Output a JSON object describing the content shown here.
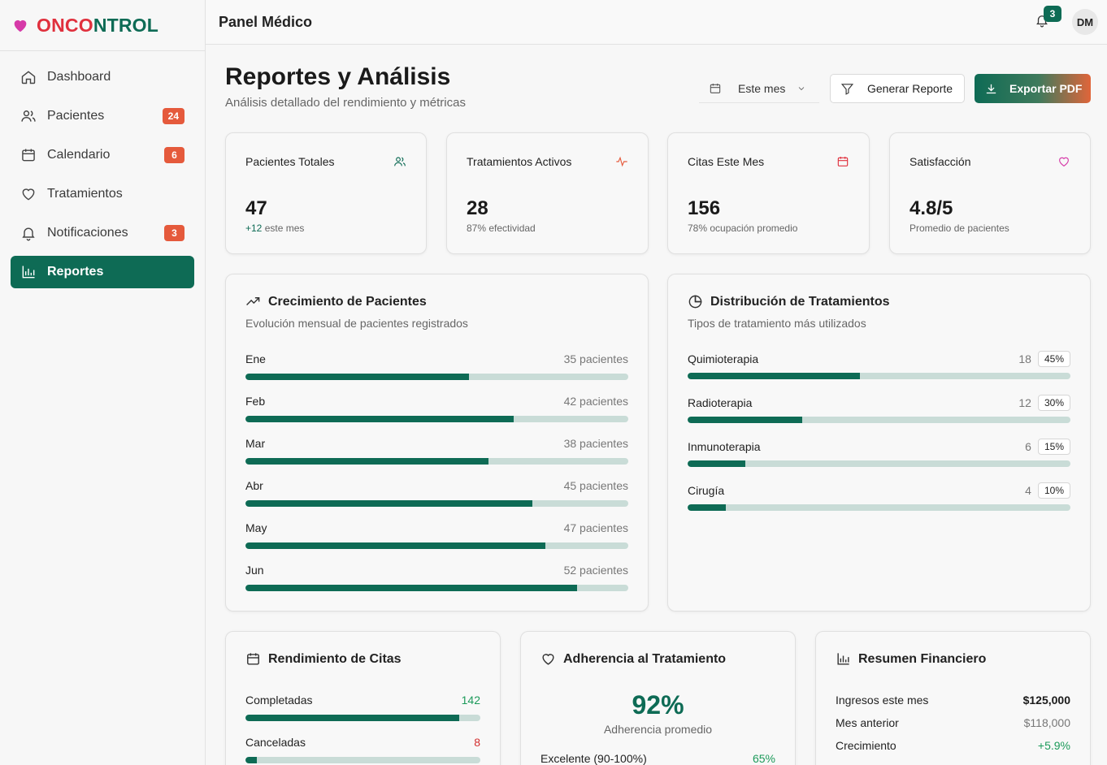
{
  "brand": {
    "part1": "ONCO",
    "part2": "NTROL",
    "accent": "#0e6b55",
    "heart_color": "#d63aa8"
  },
  "sidebar": {
    "items": [
      {
        "label": "Dashboard",
        "icon": "home-icon",
        "badge": ""
      },
      {
        "label": "Pacientes",
        "icon": "users-icon",
        "badge": "24"
      },
      {
        "label": "Calendario",
        "icon": "calendar-icon",
        "badge": "6"
      },
      {
        "label": "Tratamientos",
        "icon": "heart-icon",
        "badge": ""
      },
      {
        "label": "Notificaciones",
        "icon": "bell-icon",
        "badge": "3"
      },
      {
        "label": "Reportes",
        "icon": "bar-chart-icon",
        "badge": "",
        "active": true
      }
    ]
  },
  "header": {
    "title": "Panel Médico",
    "notifications": "3",
    "avatar": "DM"
  },
  "page": {
    "title": "Reportes y Análisis",
    "subtitle": "Análisis detallado del rendimiento y métricas"
  },
  "toolbar": {
    "period": "Este mes",
    "generate_label": "Generar Reporte",
    "export_label": "Exportar PDF"
  },
  "stats": [
    {
      "label": "Pacientes Totales",
      "value": "47",
      "note_hl": "+12",
      "note": " este mes",
      "icon": "users-icon"
    },
    {
      "label": "Tratamientos Activos",
      "value": "28",
      "note_hl": "",
      "note": "87% efectividad",
      "icon": "activity-icon"
    },
    {
      "label": "Citas Este Mes",
      "value": "156",
      "note_hl": "",
      "note": "78% ocupación promedio",
      "icon": "calendar-icon"
    },
    {
      "label": "Satisfacción",
      "value": "4.8/5",
      "note_hl": "",
      "note": "Promedio de pacientes",
      "icon": "heart-icon"
    }
  ],
  "growth": {
    "title": "Crecimiento de Pacientes",
    "subtitle": "Evolución mensual de pacientes registrados",
    "rows": [
      {
        "label": "Ene",
        "value": "35 pacientes",
        "fraction": 0.584
      },
      {
        "label": "Feb",
        "value": "42 pacientes",
        "fraction": 0.7
      },
      {
        "label": "Mar",
        "value": "38 pacientes",
        "fraction": 0.634
      },
      {
        "label": "Abr",
        "value": "45 pacientes",
        "fraction": 0.75
      },
      {
        "label": "May",
        "value": "47 pacientes",
        "fraction": 0.784
      },
      {
        "label": "Jun",
        "value": "52 pacientes",
        "fraction": 0.867
      }
    ]
  },
  "distribution": {
    "title": "Distribución de Tratamientos",
    "subtitle": "Tipos de tratamiento más utilizados",
    "rows": [
      {
        "label": "Quimioterapia",
        "count": "18",
        "pct": "45%",
        "fraction": 0.45
      },
      {
        "label": "Radioterapia",
        "count": "12",
        "pct": "30%",
        "fraction": 0.3
      },
      {
        "label": "Inmunoterapia",
        "count": "6",
        "pct": "15%",
        "fraction": 0.15
      },
      {
        "label": "Cirugía",
        "count": "4",
        "pct": "10%",
        "fraction": 0.1
      }
    ]
  },
  "appointments": {
    "title": "Rendimiento de Citas",
    "rows": [
      {
        "label": "Completadas",
        "value": "142",
        "fraction": 0.91,
        "color": "#1c9a5a"
      },
      {
        "label": "Canceladas",
        "value": "8",
        "fraction": 0.05,
        "color": "#d32f2f"
      }
    ]
  },
  "adherence": {
    "title": "Adherencia al Tratamiento",
    "value": "92%",
    "subtitle": "Adherencia promedio",
    "row_label": "Excelente (90-100%)",
    "row_value": "65%"
  },
  "finance": {
    "title": "Resumen Financiero",
    "rows": [
      {
        "label": "Ingresos este mes",
        "value": "$125,000",
        "style": "bold"
      },
      {
        "label": "Mes anterior",
        "value": "$118,000",
        "style": ""
      },
      {
        "label": "Crecimiento",
        "value": "+5.9%",
        "style": "green"
      }
    ]
  }
}
